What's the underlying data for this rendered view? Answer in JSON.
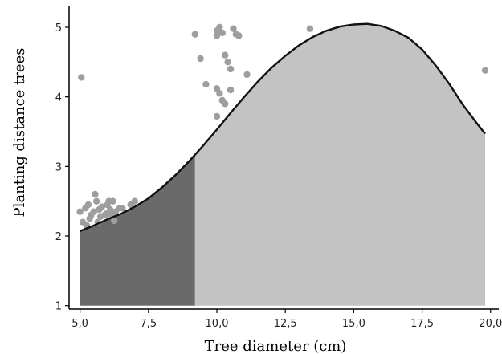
{
  "chart_data": {
    "type": "area",
    "xlabel": "Tree diameter (cm)",
    "ylabel": "Planting distance trees",
    "xlim": [
      4.6,
      20.3
    ],
    "ylim": [
      0.95,
      5.3
    ],
    "xticks": [
      "5,0",
      "7,5",
      "10,0",
      "12,5",
      "15,0",
      "17,5",
      "20,0"
    ],
    "xtick_values": [
      5.0,
      7.5,
      10.0,
      12.5,
      15.0,
      17.5,
      20.0
    ],
    "yticks": [
      "1",
      "2",
      "3",
      "4",
      "5"
    ],
    "ytick_values": [
      1,
      2,
      3,
      4,
      5
    ],
    "curve": {
      "x": [
        5.0,
        5.5,
        6.0,
        6.5,
        7.0,
        7.5,
        8.0,
        8.5,
        9.0,
        9.5,
        10.0,
        10.5,
        11.0,
        11.5,
        12.0,
        12.5,
        13.0,
        13.5,
        14.0,
        14.5,
        15.0,
        15.5,
        16.0,
        16.5,
        17.0,
        17.5,
        18.0,
        18.5,
        19.0,
        19.5,
        19.8
      ],
      "y": [
        2.07,
        2.15,
        2.24,
        2.32,
        2.42,
        2.54,
        2.7,
        2.88,
        3.08,
        3.3,
        3.53,
        3.77,
        4.0,
        4.22,
        4.42,
        4.59,
        4.74,
        4.86,
        4.95,
        5.01,
        5.04,
        5.05,
        5.02,
        4.95,
        4.85,
        4.68,
        4.45,
        4.18,
        3.88,
        3.62,
        3.47
      ]
    },
    "shaded_regions": [
      {
        "from": 5.0,
        "to": 9.2,
        "color": "#6a6a6a"
      },
      {
        "from": 9.2,
        "to": 19.8,
        "color": "#c3c3c3"
      }
    ],
    "points": {
      "color": "#9e9e9e",
      "x": [
        5.0,
        5.2,
        5.3,
        5.4,
        5.5,
        5.6,
        5.7,
        5.8,
        5.9,
        6.0,
        6.1,
        6.2,
        6.3,
        5.1,
        5.35,
        5.55,
        5.75,
        5.95,
        6.05,
        6.25,
        6.45,
        5.25,
        5.65,
        6.15,
        6.55,
        6.85,
        7.0,
        5.05,
        9.2,
        9.4,
        9.6,
        10.0,
        10.0,
        10.1,
        10.2,
        10.3,
        10.4,
        10.5,
        10.6,
        10.7,
        10.8,
        11.1,
        10.0,
        10.1,
        10.2,
        10.3,
        10.5,
        10.0,
        13.4,
        19.8
      ],
      "y": [
        2.35,
        2.4,
        2.45,
        2.3,
        2.35,
        2.5,
        2.38,
        2.42,
        2.3,
        2.45,
        2.38,
        2.5,
        2.35,
        2.2,
        2.25,
        2.6,
        2.28,
        2.32,
        2.5,
        2.22,
        2.4,
        2.15,
        2.2,
        2.3,
        2.4,
        2.45,
        2.5,
        4.28,
        4.9,
        4.55,
        4.18,
        4.95,
        4.88,
        5.0,
        4.92,
        4.6,
        4.5,
        4.4,
        4.98,
        4.9,
        4.88,
        4.32,
        4.12,
        4.05,
        3.95,
        3.9,
        4.1,
        3.72,
        4.98,
        4.38
      ]
    }
  }
}
